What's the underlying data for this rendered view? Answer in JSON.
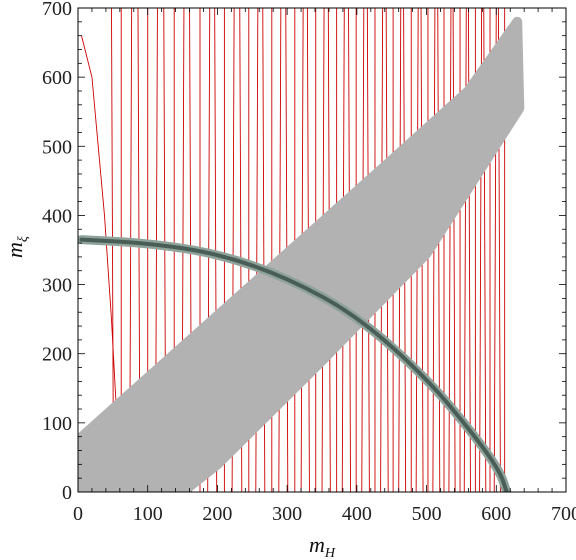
{
  "chart_data": {
    "type": "scatter",
    "xlabel_main": "m",
    "xlabel_sub": "H",
    "ylabel_main": "m",
    "ylabel_sub": "ξ",
    "xlim": [
      0,
      700
    ],
    "ylim": [
      0,
      700
    ],
    "xticks": [
      0,
      100,
      200,
      300,
      400,
      500,
      600,
      700
    ],
    "yticks": [
      0,
      100,
      200,
      300,
      400,
      500,
      600,
      700
    ],
    "colors": {
      "band": "#b2b2b2",
      "contours": "#cc0000",
      "arc": "#4a5e58",
      "frame": "#000000"
    },
    "series": [
      {
        "kind": "gray-band",
        "upper_edge": [
          [
            0,
            75
          ],
          [
            150,
            210
          ],
          [
            300,
            345
          ],
          [
            450,
            480
          ],
          [
            560,
            580
          ],
          [
            630,
            680
          ]
        ],
        "lower_edge": [
          [
            150,
            0
          ],
          [
            200,
            40
          ],
          [
            350,
            190
          ],
          [
            500,
            345
          ],
          [
            633,
            555
          ]
        ]
      },
      {
        "kind": "red-contours",
        "x_positions": [
          50,
          62,
          75,
          88,
          100,
          112,
          125,
          138,
          150,
          162,
          175,
          187,
          198,
          210,
          222,
          234,
          245,
          256,
          267,
          278,
          289,
          300,
          311,
          321,
          331,
          341,
          351,
          361,
          371,
          380,
          390,
          399,
          408,
          417,
          426,
          435,
          444,
          452,
          461,
          469,
          478,
          486,
          494,
          502,
          510,
          518,
          525,
          533,
          540,
          548,
          555,
          562,
          570,
          577,
          584,
          591,
          598,
          605,
          612
        ],
        "low_curve": [
          [
            5,
            660
          ],
          [
            20,
            600
          ],
          [
            38,
            400
          ],
          [
            48,
            250
          ],
          [
            55,
            120
          ],
          [
            62,
            10
          ]
        ]
      },
      {
        "kind": "arc",
        "points": [
          [
            5,
            365
          ],
          [
            100,
            360
          ],
          [
            200,
            345
          ],
          [
            300,
            310
          ],
          [
            400,
            255
          ],
          [
            500,
            165
          ],
          [
            570,
            80
          ],
          [
            605,
            30
          ],
          [
            615,
            0
          ]
        ]
      }
    ]
  }
}
